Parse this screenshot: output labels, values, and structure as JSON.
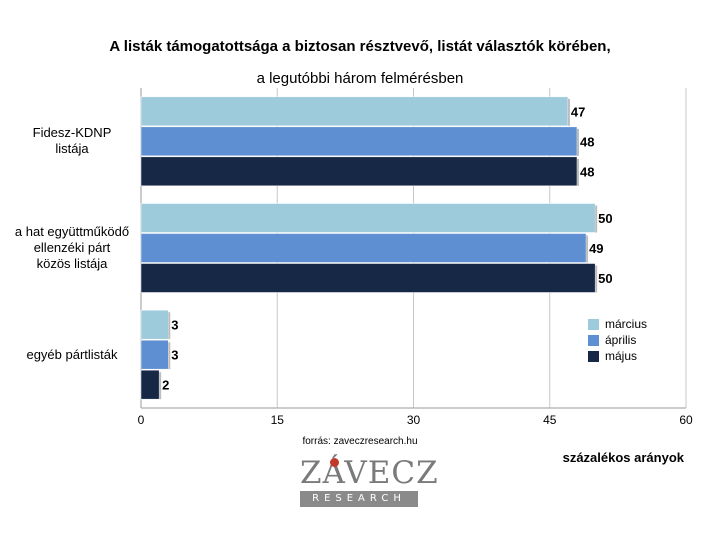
{
  "chart_data": {
    "type": "bar",
    "orientation": "horizontal",
    "title": "A listák támogatottsága a biztosan résztvevő, listát választók körében,",
    "subtitle": "a legutóbbi három felmérésben",
    "categories": [
      [
        "Fidesz-KDNP",
        "listája"
      ],
      [
        "a hat együttműködő",
        "ellenzéki párt",
        "közös listája"
      ],
      [
        "egyéb pártlisták"
      ]
    ],
    "series": [
      {
        "name": "március",
        "color": "#9dcbdb",
        "values": [
          47,
          50,
          3
        ]
      },
      {
        "name": "április",
        "color": "#5f8fd3",
        "values": [
          48,
          49,
          3
        ]
      },
      {
        "name": "május",
        "color": "#172746",
        "values": [
          48,
          50,
          2
        ]
      }
    ],
    "xlim": [
      0,
      60
    ],
    "xticks": [
      0,
      15,
      30,
      45,
      60
    ],
    "xlabel": "százalékos arányok",
    "source": "forrás: zaveczresearch.hu",
    "grid": true,
    "legend_position": "right"
  },
  "logo": {
    "word": "ZÁVECZ",
    "sub": "RESEARCH"
  }
}
